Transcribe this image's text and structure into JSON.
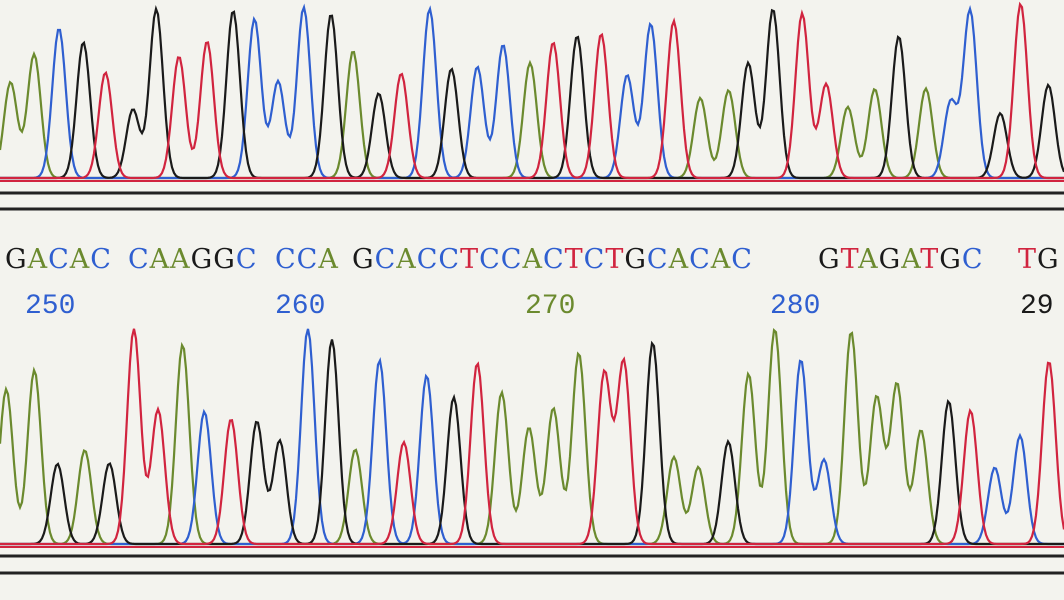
{
  "sequence_groups": [
    "GACAC",
    "CAAGGC",
    "CCA",
    "GCACCTCCACTCTGCACAC",
    "GTAGATGC",
    "TG"
  ],
  "positions": [
    250,
    260,
    270,
    280,
    29
  ]
}
